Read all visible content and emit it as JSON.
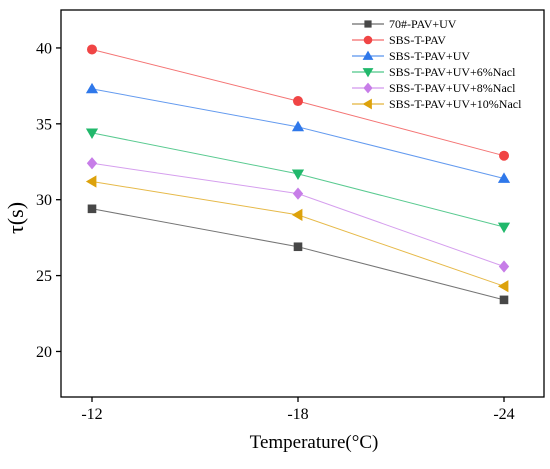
{
  "chart_data": {
    "type": "line",
    "title": "",
    "xlabel": "Temperature(°C)",
    "ylabel": "τ(s)",
    "categories": [
      "-12",
      "-18",
      "-24"
    ],
    "ylim": [
      17,
      42.5
    ],
    "yticks": [
      20,
      25,
      30,
      35,
      40
    ],
    "grid": false,
    "legend_position": "top-right",
    "series": [
      {
        "name": "70#-PAV+UV",
        "values": [
          29.4,
          26.9,
          23.4
        ],
        "color": "#474747",
        "marker": "square"
      },
      {
        "name": "SBS-T-PAV",
        "values": [
          39.9,
          36.5,
          32.9
        ],
        "color": "#f04545",
        "marker": "circle"
      },
      {
        "name": "SBS-T-PAV+UV",
        "values": [
          37.3,
          34.8,
          31.4
        ],
        "color": "#2f78ea",
        "marker": "triangle-up"
      },
      {
        "name": "SBS-T-PAV+UV+6%Nacl",
        "values": [
          34.4,
          31.7,
          28.2
        ],
        "color": "#21b86b",
        "marker": "triangle-down"
      },
      {
        "name": "SBS-T-PAV+UV+8%Nacl",
        "values": [
          32.4,
          30.4,
          25.6
        ],
        "color": "#c77de8",
        "marker": "diamond"
      },
      {
        "name": "SBS-T-PAV+UV+10%Nacl",
        "values": [
          31.2,
          29.0,
          24.3
        ],
        "color": "#dda20b",
        "marker": "triangle-left"
      }
    ]
  }
}
